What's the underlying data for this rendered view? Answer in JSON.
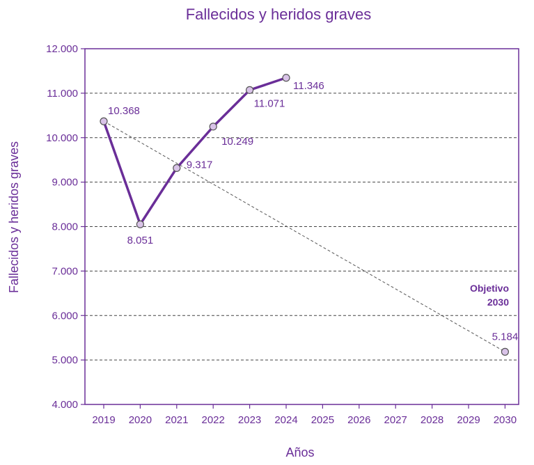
{
  "chart_data": {
    "type": "line",
    "title": "Fallecidos y heridos graves",
    "xlabel": "Años",
    "ylabel": "Fallecidos y heridos graves",
    "x_ticks": [
      "2019",
      "2020",
      "2021",
      "2022",
      "2023",
      "2024",
      "2025",
      "2026",
      "2027",
      "2028",
      "2029",
      "2030"
    ],
    "y_ticks": [
      "4.000",
      "5.000",
      "6.000",
      "7.000",
      "8.000",
      "9.000",
      "10.000",
      "11.000",
      "12.000"
    ],
    "ylim": [
      4000,
      12000
    ],
    "xlim": [
      2019,
      2030
    ],
    "grid": "horizontal-dashed",
    "series": [
      {
        "x": [
          2019,
          2020,
          2021,
          2022,
          2023,
          2024
        ],
        "values": [
          10368,
          8051,
          9317,
          10249,
          11071,
          11346
        ],
        "labels": [
          "10.368",
          "8.051",
          "9.317",
          "10.249",
          "11.071",
          "11.346"
        ],
        "color": "#6a2e98"
      },
      {
        "x": [
          2019,
          2030
        ],
        "values": [
          10368,
          5184
        ],
        "labels": [
          "",
          "5.184"
        ],
        "color": "#555555",
        "style": "dashed"
      }
    ],
    "annotation": {
      "line1": "Objetivo",
      "line2": "2030"
    },
    "colors": {
      "main": "#6a2e98",
      "marker_fill": "#d9c3e8",
      "target": "#555555"
    }
  }
}
